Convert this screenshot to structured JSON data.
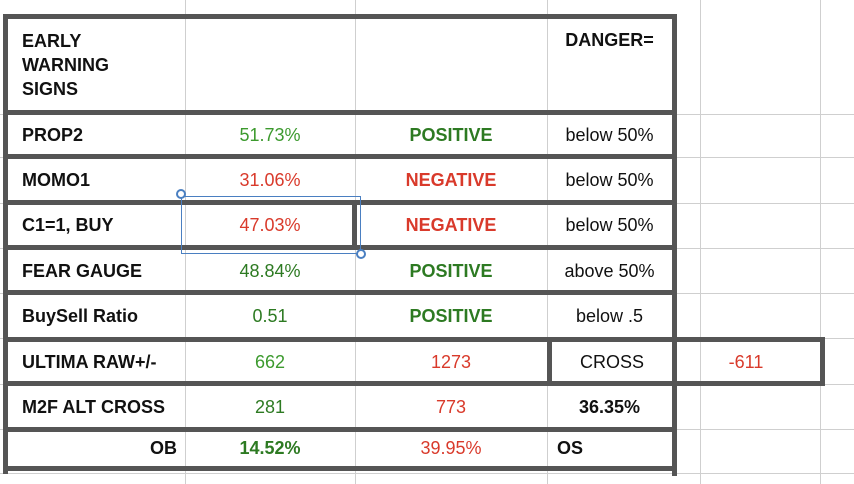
{
  "header": {
    "title": "EARLY WARNING SIGNS",
    "danger": "DANGER="
  },
  "rows": [
    {
      "label": "PROP2",
      "value": "51.73%",
      "signal": "POSITIVE",
      "threshold": "below 50%"
    },
    {
      "label": "MOMO1",
      "value": "31.06%",
      "signal": "NEGATIVE",
      "threshold": "below 50%"
    },
    {
      "label": "C1=1, BUY",
      "value": "47.03%",
      "signal": "NEGATIVE",
      "threshold": "below 50%"
    },
    {
      "label": "FEAR GAUGE",
      "value": "48.84%",
      "signal": "POSITIVE",
      "threshold": "above 50%"
    },
    {
      "label": "BuySell Ratio",
      "value": "0.51",
      "signal": "POSITIVE",
      "threshold": "below .5"
    }
  ],
  "ultima": {
    "label": "ULTIMA RAW+/-",
    "plus": "662",
    "minus": "1273",
    "cross_label": "CROSS",
    "cross_value": "-611"
  },
  "m2f": {
    "label": "M2F ALT CROSS",
    "a": "281",
    "b": "773",
    "pct": "36.35%"
  },
  "ob": {
    "label": "OB",
    "ob_pct": "14.52%",
    "os_pct": "39.95%",
    "os_label": "OS"
  },
  "colors": {
    "positive": "#2d7a22",
    "negative": "#d93a2b",
    "light_green": "#3c9a2e",
    "selection": "#4a7fc1"
  }
}
